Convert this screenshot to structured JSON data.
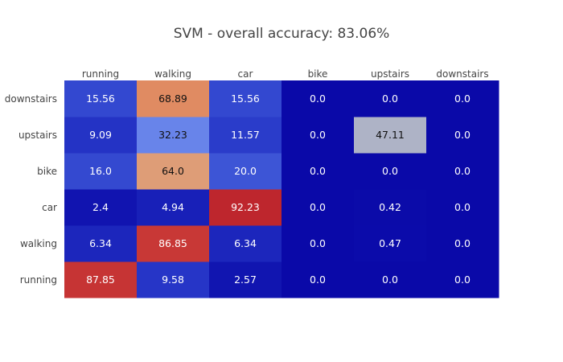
{
  "chart_data": {
    "type": "heatmap",
    "title": "SVM - overall accuracy: 83.06%",
    "x_categories": [
      "running",
      "walking",
      "car",
      "bike",
      "upstairs",
      "downstairs"
    ],
    "y_categories": [
      "running",
      "walking",
      "car",
      "bike",
      "upstairs",
      "downstairs"
    ],
    "z": [
      [
        87.85,
        9.58,
        2.57,
        0.0,
        0.0,
        0.0
      ],
      [
        6.34,
        86.85,
        6.34,
        0.0,
        0.47,
        0.0
      ],
      [
        2.4,
        4.94,
        92.23,
        0.0,
        0.42,
        0.0
      ],
      [
        16.0,
        64.0,
        20.0,
        0.0,
        0.0,
        0.0
      ],
      [
        9.09,
        32.23,
        11.57,
        0.0,
        47.11,
        0.0
      ],
      [
        15.56,
        68.89,
        15.56,
        0.0,
        0.0,
        0.0
      ]
    ],
    "z_labels": [
      [
        "87.85",
        "9.58",
        "2.57",
        "0.0",
        "0.0",
        "0.0"
      ],
      [
        "6.34",
        "86.85",
        "6.34",
        "0.0",
        "0.47",
        "0.0"
      ],
      [
        "2.4",
        "4.94",
        "92.23",
        "0.0",
        "0.42",
        "0.0"
      ],
      [
        "16.0",
        "64.0",
        "20.0",
        "0.0",
        "0.0",
        "0.0"
      ],
      [
        "9.09",
        "32.23",
        "11.57",
        "0.0",
        "47.11",
        "0.0"
      ],
      [
        "15.56",
        "68.89",
        "15.56",
        "0.0",
        "0.0",
        "0.0"
      ]
    ],
    "x_axis_side": "top",
    "y_order": "first category at bottom",
    "zlim": [
      0,
      100
    ],
    "colorscale": "blue-to-red (coolwarm)",
    "colorscale_stops": [
      [
        0.0,
        "#0a09a8"
      ],
      [
        0.1,
        "#2737c8"
      ],
      [
        0.2,
        "#3d55d6"
      ],
      [
        0.3,
        "#5e7cea"
      ],
      [
        0.4,
        "#8a9ee8"
      ],
      [
        0.5,
        "#bdbbb8"
      ],
      [
        0.6,
        "#dcac88"
      ],
      [
        0.7,
        "#e0875d"
      ],
      [
        0.8,
        "#d55a45"
      ],
      [
        0.9,
        "#c2292f"
      ],
      [
        1.0,
        "#b11c26"
      ]
    ],
    "colorbar": false,
    "grid": false,
    "legend": "none"
  }
}
